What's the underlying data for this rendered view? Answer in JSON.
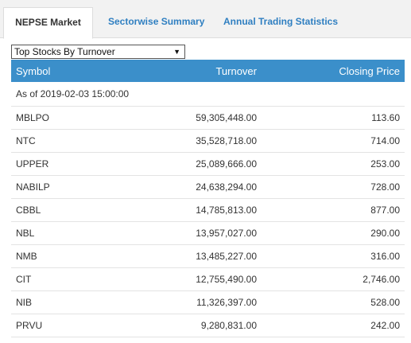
{
  "tabs": [
    {
      "label": "NEPSE Market",
      "active": true
    },
    {
      "label": "Sectorwise Summary",
      "active": false
    },
    {
      "label": "Annual Trading Statistics",
      "active": false
    }
  ],
  "dropdown": {
    "selected": "Top Stocks By Turnover"
  },
  "table": {
    "headers": {
      "symbol": "Symbol",
      "turnover": "Turnover",
      "closing_price": "Closing Price"
    },
    "as_of": "As of 2019-02-03 15:00:00",
    "rows": [
      {
        "symbol": "MBLPO",
        "turnover": "59,305,448.00",
        "closing_price": "113.60"
      },
      {
        "symbol": "NTC",
        "turnover": "35,528,718.00",
        "closing_price": "714.00"
      },
      {
        "symbol": "UPPER",
        "turnover": "25,089,666.00",
        "closing_price": "253.00"
      },
      {
        "symbol": "NABILP",
        "turnover": "24,638,294.00",
        "closing_price": "728.00"
      },
      {
        "symbol": "CBBL",
        "turnover": "14,785,813.00",
        "closing_price": "877.00"
      },
      {
        "symbol": "NBL",
        "turnover": "13,957,027.00",
        "closing_price": "290.00"
      },
      {
        "symbol": "NMB",
        "turnover": "13,485,227.00",
        "closing_price": "316.00"
      },
      {
        "symbol": "CIT",
        "turnover": "12,755,490.00",
        "closing_price": "2,746.00"
      },
      {
        "symbol": "NIB",
        "turnover": "11,326,397.00",
        "closing_price": "528.00"
      },
      {
        "symbol": "PRVU",
        "turnover": "9,280,831.00",
        "closing_price": "242.00"
      }
    ]
  }
}
